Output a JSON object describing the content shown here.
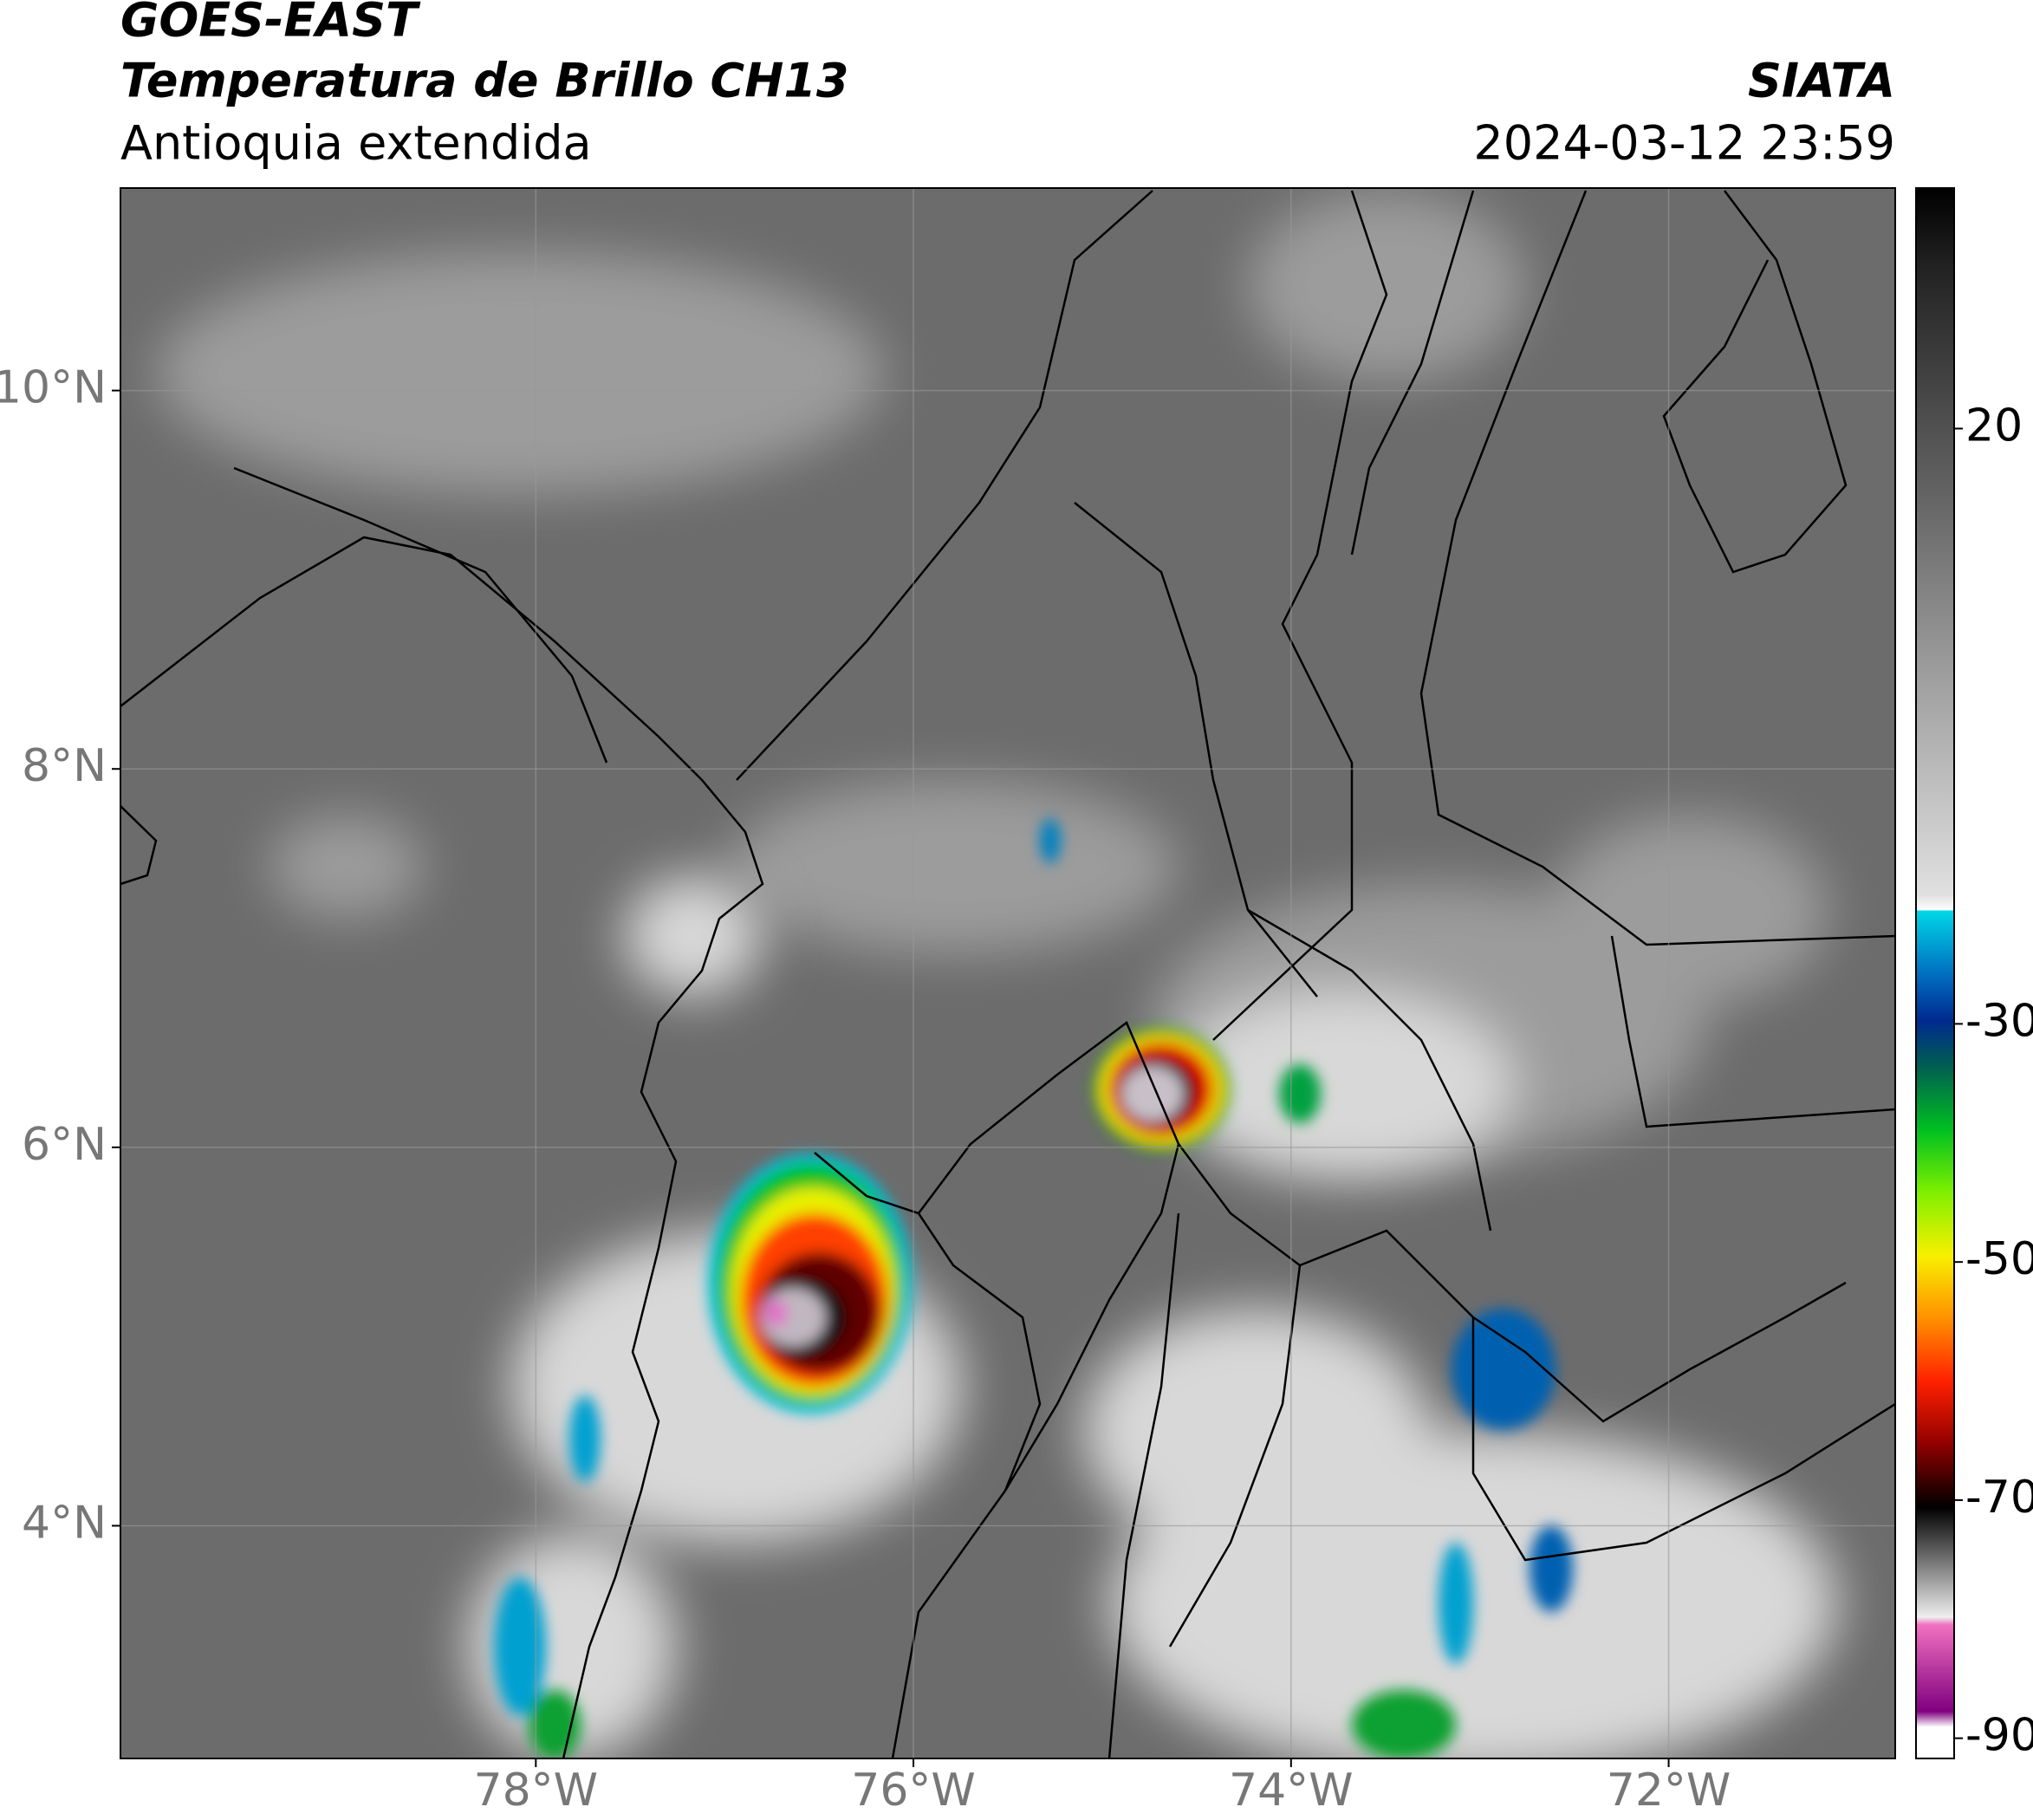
{
  "header": {
    "title": "GOES-EAST",
    "subtitle": "Temperatura de Brillo CH13",
    "region": "Antioquia extendida",
    "source": "SIATA",
    "timestamp": "2024-03-12 23:59"
  },
  "map": {
    "xlim": [
      -80.2,
      -70.8
    ],
    "ylim": [
      2.77,
      11.07
    ],
    "xticks": [
      {
        "value": -78,
        "label": "78°W"
      },
      {
        "value": -76,
        "label": "76°W"
      },
      {
        "value": -74,
        "label": "74°W"
      },
      {
        "value": -72,
        "label": "72°W"
      }
    ],
    "yticks": [
      {
        "value": 10,
        "label": "10°N"
      },
      {
        "value": 8,
        "label": "8°N"
      },
      {
        "value": 6,
        "label": "6°N"
      },
      {
        "value": 4,
        "label": "4°N"
      }
    ],
    "grid": true
  },
  "colorbar": {
    "lim": [
      -91.7,
      40.2
    ],
    "ticks": [
      20,
      -30,
      -50,
      -70,
      -90
    ]
  }
}
